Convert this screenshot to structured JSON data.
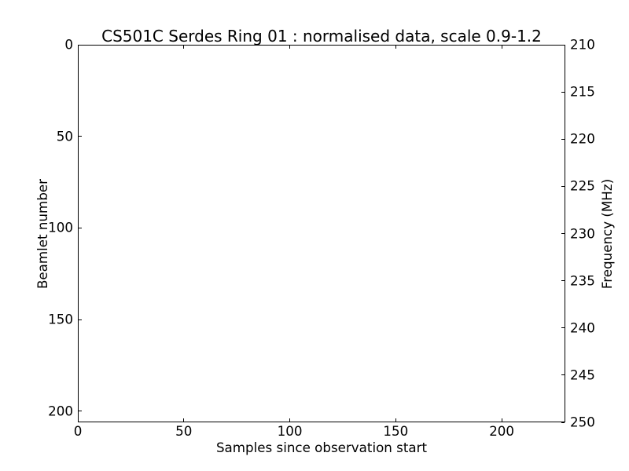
{
  "chart_data": {
    "type": "heatmap",
    "title": "CS501C Serdes Ring 01 : normalised data, scale 0.9-1.2",
    "xlabel": "Samples since observation start",
    "ylabel_left": "Beamlet number",
    "ylabel_right": "Frequency (MHz)",
    "xlim": [
      0,
      230
    ],
    "ylim_left": [
      0,
      206
    ],
    "ylim_right": [
      210,
      250
    ],
    "xticks": [
      0,
      50,
      100,
      150,
      200
    ],
    "yticks_left": [
      0,
      50,
      100,
      150,
      200
    ],
    "yticks_right": [
      210,
      215,
      220,
      225,
      230,
      235,
      240,
      245,
      250
    ],
    "y_left_inverted": true,
    "grid": false,
    "legend": null,
    "series": [],
    "plot_area_empty": true,
    "colors": {
      "foreground": "#000000",
      "background": "#ffffff"
    }
  }
}
